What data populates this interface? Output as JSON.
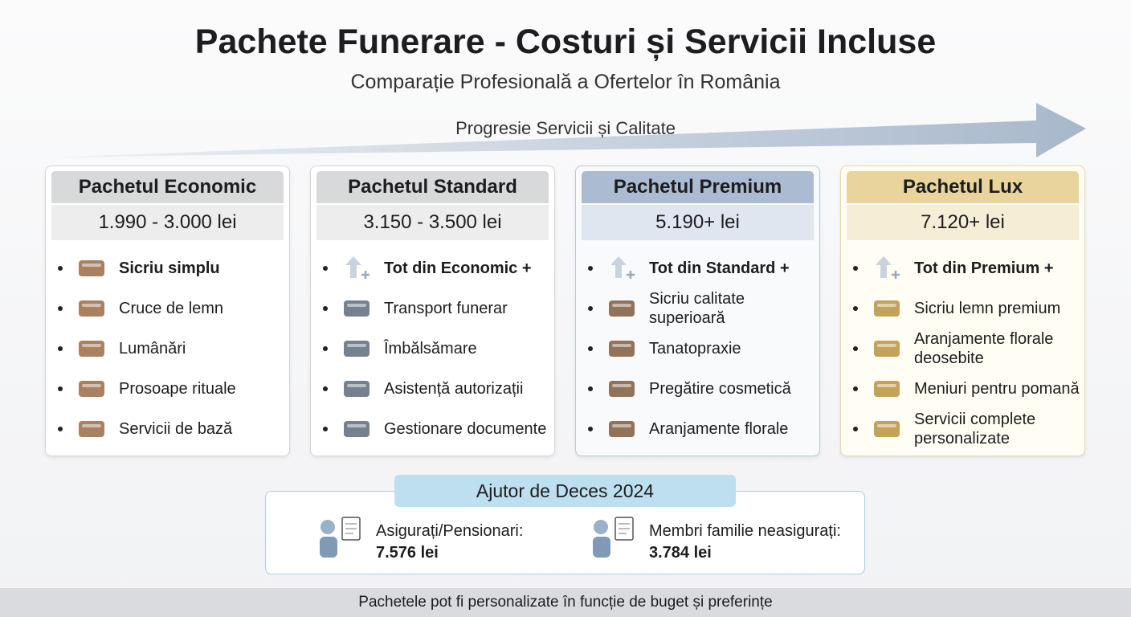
{
  "header": {
    "title": "Pachete Funerare - Costuri și Servicii Incluse",
    "subtitle": "Comparație Profesională a Ofertelor în România"
  },
  "progress": {
    "label": "Progresie Servicii și Calitate"
  },
  "packages": [
    {
      "name": "Pachetul Economic",
      "price": "1.990 - 3.000 lei",
      "items": [
        "Sicriu simplu",
        "Cruce de lemn",
        "Lumânări",
        "Prosoape rituale",
        "Servicii de bază"
      ]
    },
    {
      "name": "Pachetul Standard",
      "price": "3.150 - 3.500 lei",
      "items": [
        "Tot din Economic +",
        "Transport funerar",
        "Îmbălsămare",
        "Asistență autorizații",
        "Gestionare documente"
      ]
    },
    {
      "name": "Pachetul Premium",
      "price": "5.190+ lei",
      "items": [
        "Tot din Standard +",
        "Sicriu calitate superioară",
        "Tanatopraxie",
        "Pregătire cosmetică",
        "Aranjamente florale"
      ]
    },
    {
      "name": "Pachetul Lux",
      "price": "7.120+ lei",
      "items": [
        "Tot din Premium +",
        "Sicriu lemn premium",
        "Aranjamente florale deosebite",
        "Meniuri pentru pomană",
        "Servicii complete personalizate"
      ]
    }
  ],
  "aid": {
    "title": "Ajutor de Deces 2024",
    "items": [
      {
        "label": "Asigurați/Pensionari:",
        "value": "7.576 lei"
      },
      {
        "label": "Membri familie neasigurați:",
        "value": "3.784 lei"
      }
    ]
  },
  "footer": {
    "text": "Pachetele pot fi personalizate în funcție de buget și preferințe"
  }
}
